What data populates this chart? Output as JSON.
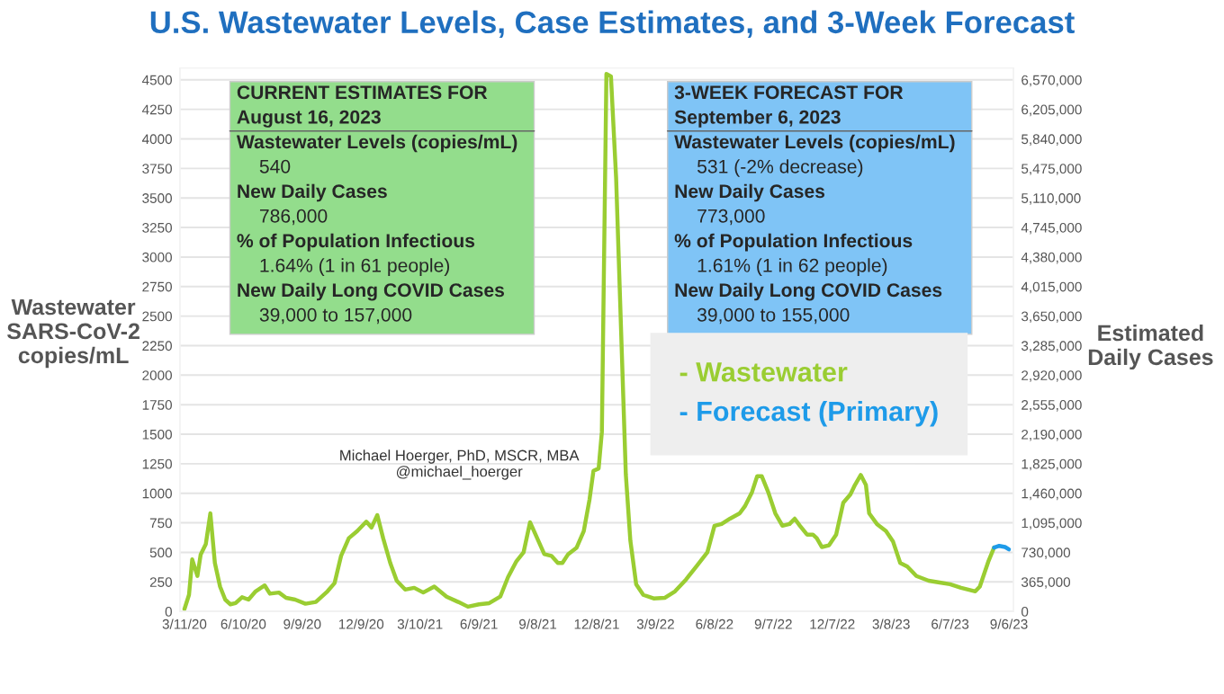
{
  "chart_data": {
    "type": "line",
    "title": "U.S. Wastewater Levels, Case Estimates, and 3-Week Forecast",
    "ylabel": "Wastewater\nSARS-CoV-2\ncopies/mL",
    "y2label": "Estimated\nDaily Cases",
    "series": [
      {
        "name": "- Wastewater",
        "color": "#9acd32",
        "x": [
          "2020-03-11",
          "2020-03-18",
          "2020-03-23",
          "2020-03-31",
          "2020-04-05",
          "2020-04-13",
          "2020-04-20",
          "2020-04-27",
          "2020-05-05",
          "2020-05-13",
          "2020-05-21",
          "2020-05-29",
          "2020-06-08",
          "2020-06-18",
          "2020-06-29",
          "2020-07-13",
          "2020-07-21",
          "2020-08-04",
          "2020-08-15",
          "2020-08-29",
          "2020-09-14",
          "2020-09-30",
          "2020-10-18",
          "2020-10-29",
          "2020-11-08",
          "2020-11-20",
          "2020-12-03",
          "2020-12-17",
          "2020-12-25",
          "2021-01-03",
          "2021-01-12",
          "2021-01-23",
          "2021-02-02",
          "2021-02-15",
          "2021-03-01",
          "2021-03-15",
          "2021-04-01",
          "2021-04-20",
          "2021-05-08",
          "2021-05-23",
          "2021-06-09",
          "2021-06-25",
          "2021-07-12",
          "2021-07-24",
          "2021-08-06",
          "2021-08-17",
          "2021-08-27",
          "2021-09-07",
          "2021-09-18",
          "2021-09-29",
          "2021-10-09",
          "2021-10-16",
          "2021-10-25",
          "2021-11-07",
          "2021-11-18",
          "2021-11-27",
          "2021-12-03",
          "2021-12-11",
          "2021-12-16",
          "2021-12-23",
          "2021-12-30",
          "2022-01-07",
          "2022-01-16",
          "2022-01-22",
          "2022-01-29",
          "2022-02-07",
          "2022-02-18",
          "2022-03-06",
          "2022-03-23",
          "2022-04-08",
          "2022-04-25",
          "2022-05-11",
          "2022-05-28",
          "2022-06-08",
          "2022-06-19",
          "2022-07-02",
          "2022-07-17",
          "2022-07-25",
          "2022-08-05",
          "2022-08-13",
          "2022-08-20",
          "2022-08-30",
          "2022-09-10",
          "2022-09-21",
          "2022-10-02",
          "2022-10-10",
          "2022-10-18",
          "2022-10-29",
          "2022-11-07",
          "2022-11-13",
          "2022-11-21",
          "2022-12-02",
          "2022-12-13",
          "2022-12-24",
          "2023-01-04",
          "2023-01-11",
          "2023-01-20",
          "2023-01-28",
          "2023-02-02",
          "2023-02-14",
          "2023-02-28",
          "2023-03-11",
          "2023-03-22",
          "2023-04-02",
          "2023-04-16",
          "2023-05-05",
          "2023-05-22",
          "2023-06-07",
          "2023-06-24",
          "2023-07-16",
          "2023-07-23",
          "2023-08-05",
          "2023-08-14"
        ],
        "values": [
          20,
          140,
          440,
          300,
          480,
          570,
          830,
          410,
          210,
          100,
          60,
          70,
          120,
          100,
          170,
          220,
          150,
          160,
          115,
          100,
          65,
          80,
          170,
          240,
          470,
          620,
          680,
          760,
          710,
          815,
          620,
          410,
          260,
          185,
          200,
          160,
          210,
          125,
          80,
          40,
          60,
          70,
          125,
          290,
          425,
          500,
          755,
          620,
          485,
          470,
          410,
          410,
          485,
          540,
          680,
          950,
          1190,
          1210,
          1520,
          4550,
          4530,
          3670,
          2160,
          1160,
          600,
          230,
          140,
          110,
          115,
          170,
          270,
          380,
          500,
          725,
          740,
          785,
          830,
          890,
          1010,
          1145,
          1145,
          1010,
          830,
          725,
          740,
          785,
          725,
          650,
          650,
          620,
          545,
          560,
          650,
          920,
          990,
          1070,
          1155,
          1070,
          830,
          740,
          680,
          590,
          410,
          380,
          300,
          260,
          245,
          230,
          200,
          170,
          210,
          420,
          540
        ]
      },
      {
        "name": "- Forecast (Primary)",
        "color": "#1e9be9",
        "x": [
          "2023-08-14",
          "2023-08-22",
          "2023-08-31",
          "2023-09-06"
        ],
        "values": [
          540,
          555,
          545,
          525
        ]
      }
    ],
    "xlim": [
      "2020-03-04",
      "2023-09-13"
    ],
    "xticks": [
      {
        "value": "2020-03-11",
        "label": "3/11/20"
      },
      {
        "value": "2020-06-10",
        "label": "6/10/20"
      },
      {
        "value": "2020-09-09",
        "label": "9/9/20"
      },
      {
        "value": "2020-12-09",
        "label": "12/9/20"
      },
      {
        "value": "2021-03-10",
        "label": "3/10/21"
      },
      {
        "value": "2021-06-09",
        "label": "6/9/21"
      },
      {
        "value": "2021-09-08",
        "label": "9/8/21"
      },
      {
        "value": "2021-12-08",
        "label": "12/8/21"
      },
      {
        "value": "2022-03-09",
        "label": "3/9/22"
      },
      {
        "value": "2022-06-08",
        "label": "6/8/22"
      },
      {
        "value": "2022-09-07",
        "label": "9/7/22"
      },
      {
        "value": "2022-12-07",
        "label": "12/7/22"
      },
      {
        "value": "2023-03-08",
        "label": "3/8/23"
      },
      {
        "value": "2023-06-07",
        "label": "6/7/23"
      },
      {
        "value": "2023-09-06",
        "label": "9/6/23"
      }
    ],
    "ylim": [
      0,
      4600
    ],
    "yticks": [
      0,
      250,
      500,
      750,
      1000,
      1250,
      1500,
      1750,
      2000,
      2250,
      2500,
      2750,
      3000,
      3250,
      3500,
      3750,
      4000,
      4250,
      4500
    ],
    "y2lim": [
      0,
      6716000
    ],
    "y2ticks": [
      {
        "value": 0,
        "label": "0"
      },
      {
        "value": 365000,
        "label": "365,000"
      },
      {
        "value": 730000,
        "label": "730,000"
      },
      {
        "value": 1095000,
        "label": "1,095,000"
      },
      {
        "value": 1460000,
        "label": "1,460,000"
      },
      {
        "value": 1825000,
        "label": "1,825,000"
      },
      {
        "value": 2190000,
        "label": "2,190,000"
      },
      {
        "value": 2555000,
        "label": "2,555,000"
      },
      {
        "value": 2920000,
        "label": "2,920,000"
      },
      {
        "value": 3285000,
        "label": "3,285,000"
      },
      {
        "value": 3650000,
        "label": "3,650,000"
      },
      {
        "value": 4015000,
        "label": "4,015,000"
      },
      {
        "value": 4380000,
        "label": "4,380,000"
      },
      {
        "value": 4745000,
        "label": "4,745,000"
      },
      {
        "value": 5110000,
        "label": "5,110,000"
      },
      {
        "value": 5475000,
        "label": "5,475,000"
      },
      {
        "value": 5840000,
        "label": "5,840,000"
      },
      {
        "value": 6205000,
        "label": "6,205,000"
      },
      {
        "value": 6570000,
        "label": "6,570,000"
      }
    ],
    "grid": "y",
    "legend": "right",
    "marker": "none",
    "line_style": "solid",
    "annotations": [
      "CURRENT ESTIMATES FOR",
      "August 16, 2023",
      "Wastewater Levels (copies/mL)",
      "540",
      "New Daily Cases",
      "786,000",
      "% of Population Infectious",
      "1.64% (1 in 61 people)",
      "New Daily Long COVID Cases",
      "39,000 to 157,000",
      "3-WEEK FORECAST FOR",
      "September 6, 2023",
      "Wastewater Levels (copies/mL)",
      "531 (-2% decrease)",
      "New Daily Cases",
      "773,000",
      "% of Population Infectious",
      "1.61% (1 in 62 people)",
      "New Daily Long COVID Cases",
      "39,000 to 155,000",
      "Michael Hoerger, PhD, MSCR, MBA\n@michael_hoerger"
    ]
  }
}
